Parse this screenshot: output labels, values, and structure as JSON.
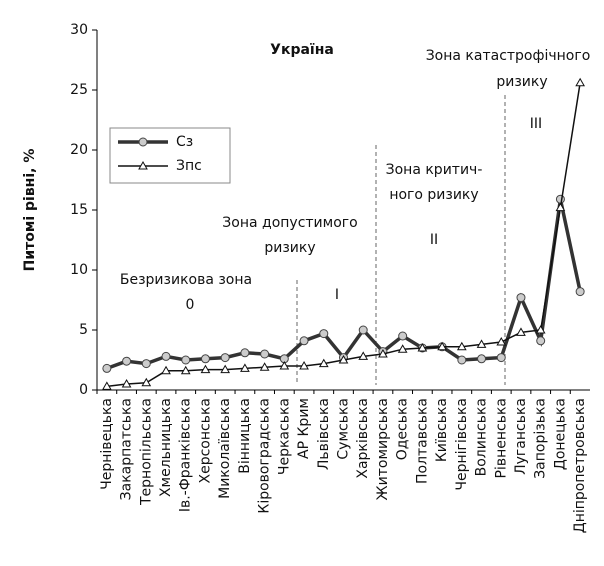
{
  "chart_data": {
    "type": "line",
    "ylabel": "Питомі рівні, %",
    "categories": [
      "Чернівецька",
      "Закарпатська",
      "Тернопільська",
      "Хмельницька",
      "Ів.-Франківська",
      "Херсонська",
      "Миколаївська",
      "Вінницька",
      "Кіровоградська",
      "Черкаська",
      "АР Крим",
      "Львівська",
      "Сумська",
      "Харківська",
      "Житомирська",
      "Одеська",
      "Полтавська",
      "Київська",
      "Чернігівська",
      "Волинська",
      "Рівненська",
      "Луганська",
      "Запорізька",
      "Донецька",
      "Дніпропетровська"
    ],
    "series": [
      {
        "name": "Сз",
        "color": "#333333",
        "values": [
          1.8,
          2.4,
          2.2,
          2.8,
          2.5,
          2.6,
          2.7,
          3.1,
          3.0,
          2.6,
          4.1,
          4.7,
          2.7,
          5.0,
          3.2,
          4.5,
          3.5,
          3.6,
          2.5,
          2.6,
          2.7,
          7.7,
          4.1,
          15.9,
          8.2
        ]
      },
      {
        "name": "Зпс",
        "color": "#111111",
        "values": [
          0.3,
          0.5,
          0.6,
          1.6,
          1.6,
          1.7,
          1.7,
          1.8,
          1.9,
          2.0,
          2.0,
          2.2,
          2.5,
          2.8,
          3.0,
          3.4,
          3.5,
          3.6,
          3.6,
          3.8,
          4.0,
          4.8,
          5.0,
          15.2,
          25.6
        ]
      }
    ],
    "ylim": [
      0,
      30
    ],
    "yticks": [
      0,
      5,
      10,
      15,
      20,
      25,
      30
    ],
    "grid": false,
    "annotations": [
      {
        "lines": [
          "Україна"
        ]
      },
      {
        "lines": [
          "Безризикова зона",
          "0"
        ]
      },
      {
        "lines": [
          "Зона допустимого",
          "ризику",
          "I"
        ]
      },
      {
        "lines": [
          "Зона критич-",
          "ного ризику",
          "II"
        ]
      },
      {
        "lines": [
          "Зона катастрофічного",
          "ризику",
          "III"
        ]
      }
    ]
  }
}
